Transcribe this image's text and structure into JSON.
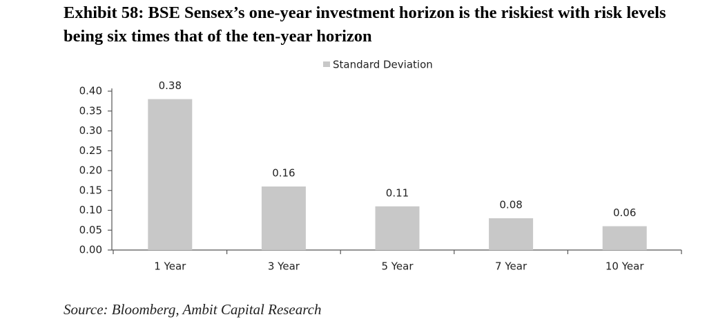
{
  "chart_data": {
    "type": "bar",
    "title": "Exhibit 58: BSE Sensex’s one-year investment horizon is the riskiest with risk levels being six times that of the ten-year horizon",
    "categories": [
      "1 Year",
      "3 Year",
      "5 Year",
      "7 Year",
      "10 Year"
    ],
    "series": [
      {
        "name": "Standard Deviation",
        "color": "#c8c8c8",
        "values": [
          0.38,
          0.16,
          0.11,
          0.08,
          0.06
        ]
      }
    ],
    "ylim": [
      0,
      0.4
    ],
    "yticks": [
      {
        "value": 0,
        "label": "0.00"
      },
      {
        "value": 0.05,
        "label": "0.05"
      },
      {
        "value": 0.1,
        "label": "0.10"
      },
      {
        "value": 0.15,
        "label": "0.15"
      },
      {
        "value": 0.2,
        "label": "0.20"
      },
      {
        "value": 0.25,
        "label": "0.25"
      },
      {
        "value": 0.3,
        "label": "0.30"
      },
      {
        "value": 0.35,
        "label": "0.35"
      },
      {
        "value": 0.4,
        "label": "0.40"
      }
    ],
    "grid": false,
    "legend": "top",
    "source": "Source: Bloomberg, Ambit Capital Research"
  }
}
